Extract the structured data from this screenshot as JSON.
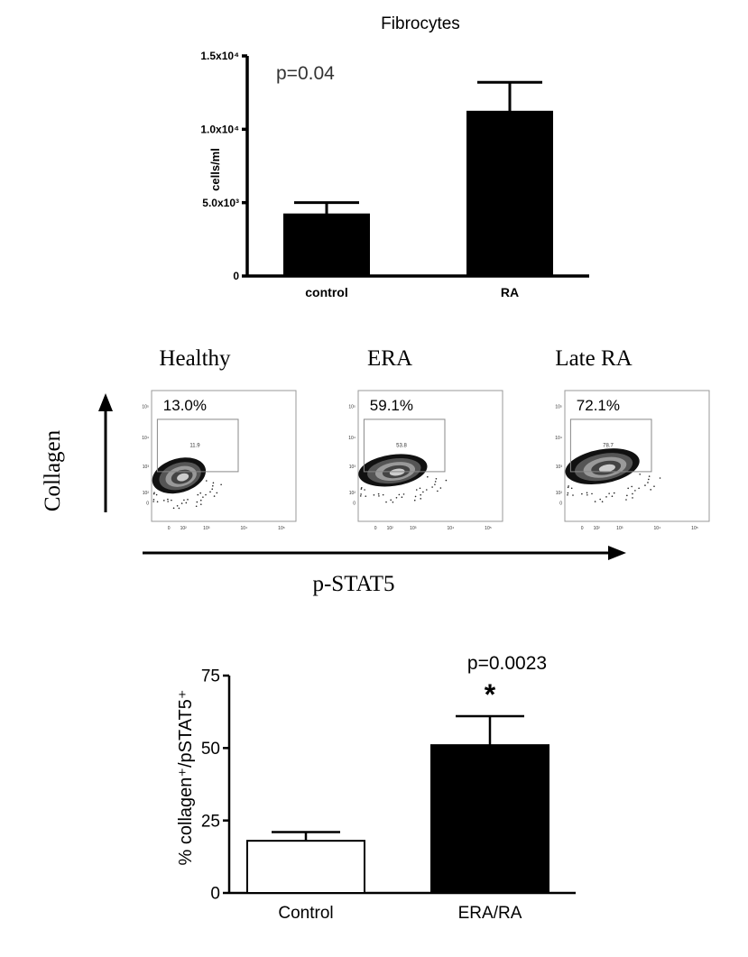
{
  "chart_data": [
    {
      "type": "bar",
      "title": "Fibrocytes",
      "ylabel": "cells/ml",
      "xlabel": "",
      "categories": [
        "control",
        "RA"
      ],
      "values": [
        4200,
        11200
      ],
      "error_upper": [
        5000,
        13200
      ],
      "ylim": [
        0,
        15000
      ],
      "yticks": [
        0,
        5000,
        10000,
        15000
      ],
      "ytick_labels": [
        "0",
        "5.0x10³",
        "1.0x10⁴",
        "1.5x10⁴"
      ],
      "annotation": "p=0.04",
      "bar_colors": [
        "#000000",
        "#000000"
      ],
      "grid": false
    },
    {
      "type": "scatter",
      "description_role": "flow-cytometry-density-panels",
      "xlabel": "p-STAT5",
      "ylabel": "Collagen",
      "panels": [
        {
          "title": "Healthy",
          "percent": "13.0%",
          "gate_value": "11.9"
        },
        {
          "title": "ERA",
          "percent": "59.1%",
          "gate_value": "53.8"
        },
        {
          "title": "Late RA",
          "percent": "72.1%",
          "gate_value": "78.7"
        }
      ],
      "tick_labels": [
        "0",
        "10²",
        "10³",
        "10⁴",
        "10⁵"
      ]
    },
    {
      "type": "bar",
      "ylabel": "% collagen⁺/pSTAT5⁺",
      "xlabel": "",
      "categories": [
        "Control",
        "ERA/RA"
      ],
      "values": [
        18,
        51
      ],
      "error_upper": [
        21,
        61
      ],
      "ylim": [
        0,
        75
      ],
      "yticks": [
        0,
        25,
        50,
        75
      ],
      "annotation": "p=0.0023",
      "significance": "*",
      "bar_fills": [
        "#ffffff",
        "#000000"
      ],
      "grid": false
    }
  ]
}
